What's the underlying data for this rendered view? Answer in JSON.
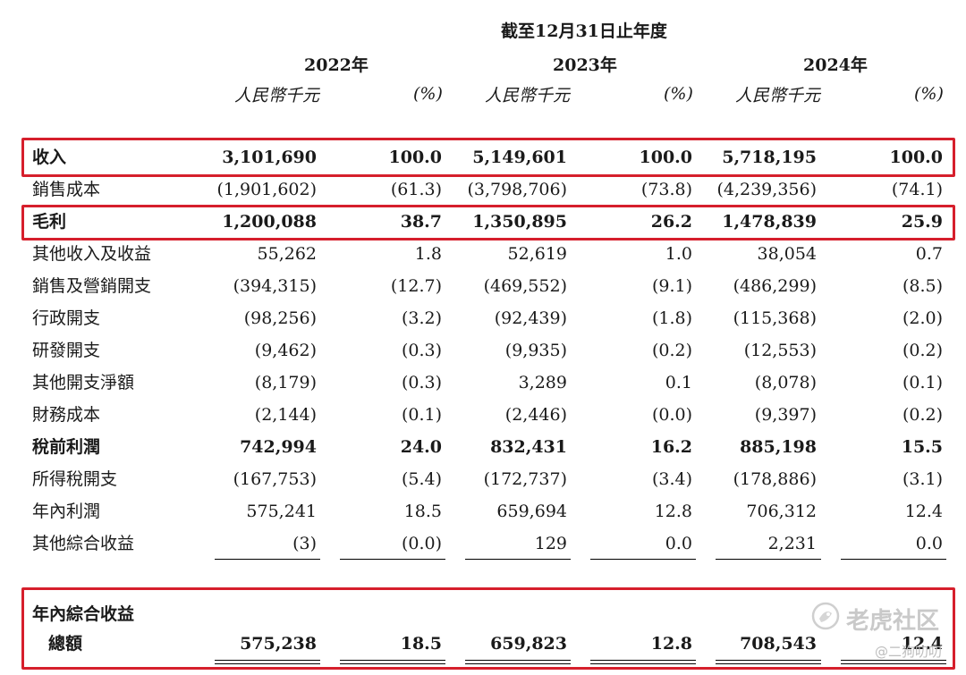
{
  "header": {
    "period_title": "截至12月31日止年度",
    "years": [
      "2022年",
      "2023年",
      "2024年"
    ],
    "unit_label": "人民幣千元",
    "pct_label": "(%)"
  },
  "rows": [
    {
      "label": "收入",
      "bold": true,
      "values": [
        "3,101,690",
        "100.0",
        "5,149,601",
        "100.0",
        "5,718,195",
        "100.0"
      ]
    },
    {
      "label": "銷售成本",
      "bold": false,
      "values": [
        "(1,901,602)",
        "(61.3)",
        "(3,798,706)",
        "(73.8)",
        "(4,239,356)",
        "(74.1)"
      ]
    },
    {
      "label": "毛利",
      "bold": true,
      "values": [
        "1,200,088",
        "38.7",
        "1,350,895",
        "26.2",
        "1,478,839",
        "25.9"
      ]
    },
    {
      "label": "其他收入及收益",
      "bold": false,
      "values": [
        "55,262",
        "1.8",
        "52,619",
        "1.0",
        "38,054",
        "0.7"
      ]
    },
    {
      "label": "銷售及營銷開支",
      "bold": false,
      "values": [
        "(394,315)",
        "(12.7)",
        "(469,552)",
        "(9.1)",
        "(486,299)",
        "(8.5)"
      ]
    },
    {
      "label": "行政開支",
      "bold": false,
      "values": [
        "(98,256)",
        "(3.2)",
        "(92,439)",
        "(1.8)",
        "(115,368)",
        "(2.0)"
      ]
    },
    {
      "label": "研發開支",
      "bold": false,
      "values": [
        "(9,462)",
        "(0.3)",
        "(9,935)",
        "(0.2)",
        "(12,553)",
        "(0.2)"
      ]
    },
    {
      "label": "其他開支淨額",
      "bold": false,
      "values": [
        "(8,179)",
        "(0.3)",
        "3,289",
        "0.1",
        "(8,078)",
        "(0.1)"
      ]
    },
    {
      "label": "財務成本",
      "bold": false,
      "values": [
        "(2,144)",
        "(0.1)",
        "(2,446)",
        "(0.0)",
        "(9,397)",
        "(0.2)"
      ]
    },
    {
      "label": "稅前利潤",
      "bold": true,
      "values": [
        "742,994",
        "24.0",
        "832,431",
        "16.2",
        "885,198",
        "15.5"
      ]
    },
    {
      "label": "所得稅開支",
      "bold": false,
      "values": [
        "(167,753)",
        "(5.4)",
        "(172,737)",
        "(3.4)",
        "(178,886)",
        "(3.1)"
      ]
    },
    {
      "label": "年內利潤",
      "bold": false,
      "values": [
        "575,241",
        "18.5",
        "659,694",
        "12.8",
        "706,312",
        "12.4"
      ]
    },
    {
      "label": "其他綜合收益",
      "bold": false,
      "values": [
        "(3)",
        "(0.0)",
        "129",
        "0.0",
        "2,231",
        "0.0"
      ]
    }
  ],
  "total": {
    "label_line1": "年內綜合收益",
    "label_line2": "總額",
    "values": [
      "575,238",
      "18.5",
      "659,823",
      "12.8",
      "708,543",
      "12.4"
    ]
  },
  "watermark": {
    "brand": "老虎社区",
    "handle": "@二狗叨叨",
    "icon": "tiger-community-logo-icon"
  },
  "colors": {
    "highlight_border": "#d61f2c"
  }
}
